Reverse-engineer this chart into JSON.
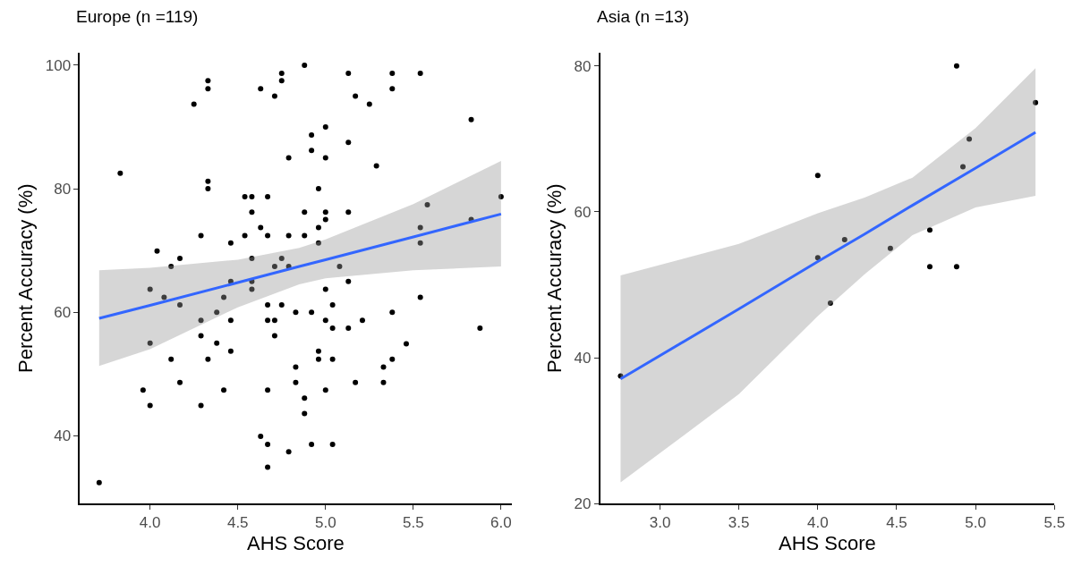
{
  "chart_data": [
    {
      "type": "scatter",
      "title": "Europe (n =119)",
      "xlabel": "AHS Score",
      "ylabel": "Percent Accuracy (%)",
      "xlim": [
        3.6,
        6.06
      ],
      "ylim": [
        29,
        102
      ],
      "xticks": [
        {
          "value": 4,
          "label": "4.0"
        },
        {
          "value": 4.5,
          "label": "4.5"
        },
        {
          "value": 5,
          "label": "5.0"
        },
        {
          "value": 5.5,
          "label": "5.5"
        },
        {
          "value": 6,
          "label": "6.0"
        }
      ],
      "yticks": [
        40,
        60,
        80,
        100
      ],
      "series": [
        {
          "color": "#000000",
          "marker": "circle",
          "x": [
            3.83,
            4.33,
            4.33,
            4.25,
            4.63,
            4.71,
            4.75,
            4.75,
            4.79,
            4.33,
            4.33,
            4.54,
            4.58,
            4.67,
            4.58,
            4.63,
            4.29,
            4.54,
            4.67,
            4.79,
            4.46,
            4.04,
            4.58,
            4.17,
            4.12,
            4.71,
            4.75,
            4.79,
            4.46,
            4.88,
            5.13,
            5.38,
            5.54,
            5.38,
            5.17,
            5.25,
            5.83,
            5.0,
            4.92,
            5.13,
            4.92,
            5.0,
            5.29,
            4.96,
            6.0,
            5.58,
            4.88,
            5.0,
            5.0,
            5.13,
            4.96,
            5.54,
            5.83,
            4.88,
            4.96,
            5.54,
            5.08,
            5.13,
            4.0,
            4.08,
            4.17,
            4.42,
            4.38,
            4.58,
            4.58,
            4.67,
            4.75,
            4.83,
            4.29,
            4.46,
            4.67,
            4.71,
            4.29,
            4.71,
            4.0,
            4.38,
            4.46,
            4.12,
            4.33,
            4.83,
            4.83,
            4.17,
            3.96,
            4.42,
            4.67,
            4.0,
            4.29,
            4.63,
            4.67,
            4.79,
            4.67,
            3.71,
            5.0,
            5.54,
            5.04,
            4.92,
            5.38,
            5.0,
            5.21,
            5.04,
            5.13,
            5.88,
            5.46,
            4.96,
            4.96,
            5.04,
            5.38,
            5.33,
            5.17,
            5.33,
            5.0,
            4.88,
            4.88,
            4.92,
            5.04
          ],
          "values": [
            82.5,
            97.5,
            96.2,
            93.7,
            96.2,
            95.0,
            98.7,
            97.5,
            85.0,
            81.2,
            80.0,
            78.7,
            78.7,
            78.7,
            76.2,
            73.7,
            72.4,
            72.4,
            72.4,
            72.4,
            71.2,
            69.9,
            68.7,
            68.7,
            67.4,
            67.4,
            68.7,
            67.4,
            65.0,
            100,
            98.7,
            98.7,
            98.7,
            96.2,
            95.0,
            93.7,
            91.2,
            90.0,
            88.7,
            87.5,
            86.2,
            85.0,
            83.7,
            80.0,
            78.7,
            77.4,
            76.2,
            76.2,
            75.0,
            76.2,
            73.7,
            73.7,
            75.0,
            72.4,
            71.2,
            71.2,
            67.4,
            65.0,
            63.7,
            62.4,
            61.2,
            62.4,
            60.0,
            65.0,
            63.7,
            61.2,
            61.2,
            60.0,
            58.7,
            58.7,
            58.7,
            58.7,
            56.2,
            56.2,
            55.0,
            55.0,
            53.7,
            52.4,
            52.4,
            51.1,
            48.6,
            48.6,
            47.4,
            47.4,
            47.4,
            44.9,
            44.9,
            39.9,
            38.6,
            37.4,
            34.9,
            32.4,
            63.7,
            62.4,
            61.2,
            60.0,
            60.0,
            58.7,
            58.7,
            57.4,
            57.4,
            57.4,
            54.9,
            53.7,
            52.4,
            52.4,
            52.4,
            51.1,
            48.6,
            48.6,
            47.4,
            46.1,
            43.6,
            38.6,
            38.6
          ]
        },
        {
          "type": "line",
          "color": "#3366ff",
          "marker": "none",
          "line_style": "solid",
          "x": [
            3.71,
            4.0,
            4.5,
            4.85,
            5.0,
            5.5,
            6.0
          ],
          "values": [
            59.0,
            61.1,
            64.8,
            67.4,
            68.5,
            72.2,
            75.9
          ],
          "lower": [
            51.3,
            54.0,
            60.8,
            64.5,
            65.5,
            66.8,
            67.4
          ],
          "upper": [
            66.8,
            67.2,
            68.5,
            70.4,
            71.8,
            77.5,
            84.5
          ]
        }
      ]
    },
    {
      "type": "scatter",
      "title": "Asia (n =13)",
      "xlabel": "AHS Score",
      "ylabel": "Percent Accuracy (%)",
      "xlim": [
        2.62,
        5.5
      ],
      "ylim": [
        20,
        81.8
      ],
      "xticks": [
        {
          "value": 3,
          "label": "3.0"
        },
        {
          "value": 3.5,
          "label": "3.5"
        },
        {
          "value": 4,
          "label": "4.0"
        },
        {
          "value": 4.5,
          "label": "4.5"
        },
        {
          "value": 5,
          "label": "5.0"
        },
        {
          "value": 5.5,
          "label": "5.5"
        }
      ],
      "yticks": [
        20,
        40,
        60,
        80
      ],
      "series": [
        {
          "color": "#000000",
          "marker": "circle",
          "x": [
            2.75,
            4.0,
            4.0,
            4.17,
            4.08,
            4.46,
            4.71,
            4.71,
            4.88,
            4.88,
            4.92,
            4.96,
            5.38
          ],
          "values": [
            37.5,
            65.0,
            53.7,
            56.2,
            47.5,
            55.0,
            57.5,
            52.5,
            52.5,
            80.0,
            66.2,
            70.0,
            75.0
          ]
        },
        {
          "type": "line",
          "color": "#3366ff",
          "marker": "none",
          "line_style": "solid",
          "x": [
            2.75,
            3.5,
            4.0,
            4.3,
            4.6,
            5.0,
            5.38
          ],
          "values": [
            37.1,
            46.7,
            53.2,
            57.0,
            60.9,
            66.0,
            70.9
          ],
          "lower": [
            22.9,
            35.0,
            45.7,
            51.5,
            56.8,
            60.6,
            62.2
          ],
          "upper": [
            51.3,
            55.6,
            59.8,
            62.0,
            64.7,
            71.5,
            79.7
          ]
        }
      ]
    }
  ]
}
